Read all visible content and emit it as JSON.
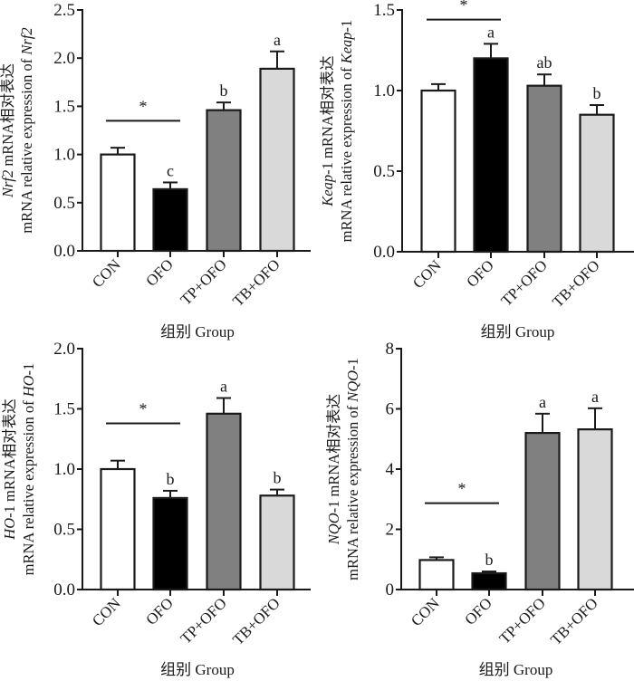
{
  "chart_data": [
    {
      "type": "bar",
      "panel": "top-left",
      "categories": [
        "CON",
        "OFO",
        "TP+OFO",
        "TB+OFO"
      ],
      "values": [
        1.0,
        0.64,
        1.46,
        1.89
      ],
      "error_upper": [
        1.07,
        0.71,
        1.54,
        2.07
      ],
      "sig_letters": [
        "",
        "c",
        "b",
        "a"
      ],
      "star": {
        "label": "*",
        "from": 0,
        "to": 1,
        "value": 1.35
      },
      "ylim": [
        0,
        2.5
      ],
      "yticks": [
        0,
        0.5,
        1.0,
        1.5,
        2.0,
        2.5
      ],
      "ytick_labels": [
        "0.0",
        "0.5",
        "1.0",
        "1.5",
        "2.0",
        "2.5"
      ],
      "ylabel_line1_italic": "Nrf2",
      "ylabel_line1_rest": " mRNA相对表达",
      "ylabel_line2_text": "mRNA relative expression of ",
      "ylabel_line2_italic": "Nrf2",
      "ylabel_line2_suffix": "",
      "xlabel": "组别 Group",
      "title": ""
    },
    {
      "type": "bar",
      "panel": "top-right",
      "categories": [
        "CON",
        "OFO",
        "TP+OFO",
        "TB+OFO"
      ],
      "values": [
        1.0,
        1.2,
        1.03,
        0.85
      ],
      "error_upper": [
        1.04,
        1.29,
        1.1,
        0.91
      ],
      "sig_letters": [
        "",
        "a",
        "ab",
        "b"
      ],
      "star": {
        "label": "*",
        "from": 0,
        "to": 1,
        "value": 1.44
      },
      "ylim": [
        0,
        1.5
      ],
      "yticks": [
        0,
        0.5,
        1.0,
        1.5
      ],
      "ytick_labels": [
        "0.0",
        "0.5",
        "1.0",
        "1.5"
      ],
      "ylabel_line1_italic": "Keap",
      "ylabel_line1_rest": "-1 mRNA相对表达",
      "ylabel_line2_text": "mRNA relative expression of ",
      "ylabel_line2_italic": "Keap",
      "ylabel_line2_suffix": "-1",
      "xlabel": "组别 Group",
      "title": ""
    },
    {
      "type": "bar",
      "panel": "bottom-left",
      "categories": [
        "CON",
        "OFO",
        "TP+OFO",
        "TB+OFO"
      ],
      "values": [
        1.0,
        0.76,
        1.46,
        0.78
      ],
      "error_upper": [
        1.07,
        0.82,
        1.59,
        0.83
      ],
      "sig_letters": [
        "",
        "b",
        "a",
        "b"
      ],
      "star": {
        "label": "*",
        "from": 0,
        "to": 1,
        "value": 1.38
      },
      "ylim": [
        0,
        2.0
      ],
      "yticks": [
        0,
        0.5,
        1.0,
        1.5,
        2.0
      ],
      "ytick_labels": [
        "0.0",
        "0.5",
        "1.0",
        "1.5",
        "2.0"
      ],
      "ylabel_line1_italic": "HO",
      "ylabel_line1_rest": "-1 mRNA相对表达",
      "ylabel_line2_text": "mRNA relative expression of ",
      "ylabel_line2_italic": "HO",
      "ylabel_line2_suffix": "-1",
      "xlabel": "组别 Group",
      "title": ""
    },
    {
      "type": "bar",
      "panel": "bottom-right",
      "categories": [
        "CON",
        "OFO",
        "TP+OFO",
        "TB+OFO"
      ],
      "values": [
        0.98,
        0.54,
        5.2,
        5.32
      ],
      "error_upper": [
        1.07,
        0.6,
        5.84,
        6.02
      ],
      "sig_letters": [
        "",
        "b",
        "a",
        "a"
      ],
      "star": {
        "label": "*",
        "from": 0,
        "to": 1,
        "value": 2.87
      },
      "ylim": [
        0,
        8
      ],
      "yticks": [
        0,
        2,
        4,
        6,
        8
      ],
      "ytick_labels": [
        "0",
        "2",
        "4",
        "6",
        "8"
      ],
      "ylabel_line1_italic": "NQO",
      "ylabel_line1_rest": "-1 mRNA相对表达",
      "ylabel_line2_text": "mRNA relative expression of ",
      "ylabel_line2_italic": "NQO",
      "ylabel_line2_suffix": "-1",
      "xlabel": "组别 Group",
      "title": ""
    }
  ],
  "bar_colors": [
    "#ffffff",
    "#000000",
    "#808080",
    "#d9d9d9"
  ],
  "ink_color": "#1a1a1a"
}
